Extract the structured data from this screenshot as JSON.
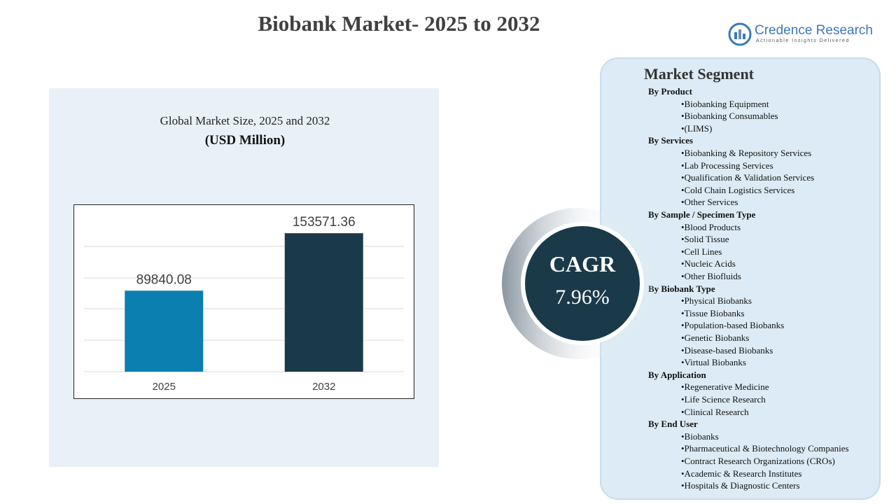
{
  "title": "Biobank Market- 2025 to 2032",
  "logo": {
    "name": "Credence Research",
    "tagline": "Actionable Insights Delivered"
  },
  "chart_data": {
    "type": "bar",
    "title": "Global Market Size, 2025 and 2032",
    "subtitle": "(USD Million)",
    "categories": [
      "2025",
      "2032"
    ],
    "values": [
      89840.08,
      153571.36
    ],
    "colors": [
      "#0a7fb0",
      "#1a3a4a"
    ],
    "ylim": [
      0,
      170000
    ]
  },
  "cagr": {
    "label": "CAGR",
    "value": "7.96%"
  },
  "segments": {
    "title": "Market Segment",
    "groups": [
      {
        "heading": "By Product",
        "items": [
          "•Biobanking  Equipment",
          "•Biobanking  Consumables",
          "•(LIMS)"
        ]
      },
      {
        "heading": "By Services",
        "items": [
          "•Biobanking  & Repository Services",
          "•Lab Processing Services",
          "•Qualification  & Validation Services",
          "•Cold Chain Logistics Services",
          "•Other Services"
        ]
      },
      {
        "heading": "By Sample / Specimen Type",
        "items": [
          "•Blood Products",
          "•Solid  Tissue",
          "•Cell Lines",
          "•Nucleic Acids",
          "•Other Biofluids"
        ]
      },
      {
        "heading": "By Biobank Type",
        "items": [
          "•Physical Biobanks",
          "•Tissue Biobanks",
          "•Population-based Biobanks",
          "•Genetic Biobanks",
          "•Disease-based Biobanks",
          "•Virtual Biobanks"
        ]
      },
      {
        "heading": "By Application",
        "items": [
          "•Regenerative Medicine",
          "•Life Science Research",
          "•Clinical  Research"
        ]
      },
      {
        "heading": "By End User",
        "items": [
          "•Biobanks",
          "•Pharmaceutical & Biotechnology  Companies",
          "•Contract Research Organizations (CROs)",
          "•Academic & Research Institutes",
          "•Hospitals  & Diagnostic Centers"
        ]
      }
    ]
  }
}
